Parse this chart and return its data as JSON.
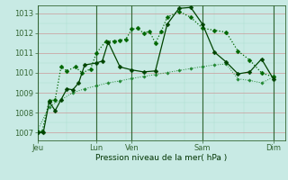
{
  "bg_color": "#c8eae4",
  "grid_color_major_x": "#336633",
  "grid_color_major_y": "#cc9999",
  "grid_color_minor": "#aaddcc",
  "line_color1": "#006600",
  "line_color2": "#004400",
  "line_color3": "#228833",
  "xlabel": "Pression niveau de la mer( hPa )",
  "xlabel_color": "#003300",
  "tick_color": "#336633",
  "axis_color": "#336633",
  "ylim": [
    1006.6,
    1013.4
  ],
  "yticks": [
    1007,
    1008,
    1009,
    1010,
    1011,
    1012,
    1013
  ],
  "day_positions": [
    0,
    5,
    10,
    15,
    20
  ],
  "xtick_labels": [
    "Jeu",
    "Lun",
    "Ven",
    "Sam",
    "Dim"
  ],
  "xtick_positions": [
    0,
    5,
    8,
    14,
    20
  ],
  "xlim": [
    0,
    21
  ],
  "series1_x": [
    0,
    0.4,
    1,
    1.5,
    2,
    2.5,
    3.2,
    3.8,
    4.5,
    5,
    5.8,
    6.5,
    7,
    7.5,
    8,
    8.5,
    9,
    9.5,
    10,
    10.5,
    11,
    12,
    13,
    14,
    15,
    16,
    17,
    18,
    19,
    20
  ],
  "series1_y": [
    1007.0,
    1007.05,
    1008.6,
    1008.65,
    1010.3,
    1010.1,
    1010.3,
    1010.0,
    1010.2,
    1011.0,
    1011.6,
    1011.6,
    1011.65,
    1011.7,
    1012.2,
    1012.25,
    1012.0,
    1012.1,
    1011.5,
    1012.1,
    1012.8,
    1013.1,
    1012.8,
    1012.25,
    1012.15,
    1012.05,
    1011.1,
    1010.65,
    1010.0,
    1009.8
  ],
  "series2_x": [
    0,
    0.5,
    1,
    1.5,
    2,
    2.5,
    3,
    3.5,
    4,
    5,
    5.5,
    6,
    7,
    8,
    9,
    10,
    11,
    12,
    13,
    14,
    15,
    16,
    17,
    18,
    19,
    20
  ],
  "series2_y": [
    1007.0,
    1007.0,
    1008.55,
    1008.1,
    1008.65,
    1009.2,
    1009.15,
    1009.5,
    1010.4,
    1010.5,
    1010.6,
    1011.55,
    1010.3,
    1010.15,
    1010.05,
    1010.1,
    1012.45,
    1013.25,
    1013.3,
    1012.45,
    1011.05,
    1010.55,
    1009.95,
    1010.05,
    1010.7,
    1009.7
  ],
  "series3_x": [
    0,
    1,
    2,
    3,
    4,
    5,
    6,
    7,
    8,
    9,
    10,
    11,
    12,
    13,
    14,
    15,
    16,
    17,
    18,
    19,
    20
  ],
  "series3_y": [
    1007.1,
    1008.3,
    1008.65,
    1009.0,
    1009.2,
    1009.35,
    1009.5,
    1009.6,
    1009.72,
    1009.82,
    1009.92,
    1010.02,
    1010.12,
    1010.22,
    1010.32,
    1010.4,
    1010.45,
    1009.7,
    1009.62,
    1009.5,
    1009.78
  ]
}
